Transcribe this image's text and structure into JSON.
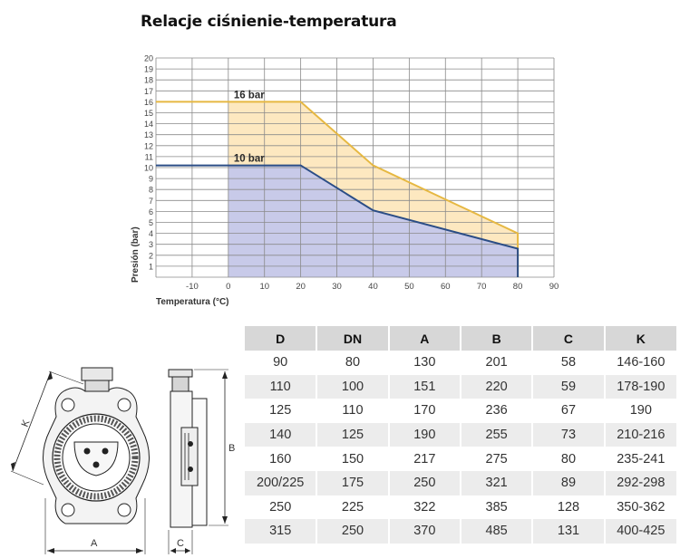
{
  "title": "Relacje ciśnienie-temperatura",
  "chart_data": {
    "type": "area",
    "xlabel": "Temperatura (°C)",
    "ylabel": "Presión (bar)",
    "xlim": [
      -20,
      90
    ],
    "ylim": [
      0,
      20
    ],
    "x_ticks": [
      -10,
      0,
      10,
      20,
      30,
      40,
      50,
      60,
      70,
      80,
      90
    ],
    "y_ticks": [
      1,
      2,
      3,
      4,
      5,
      6,
      7,
      8,
      9,
      10,
      11,
      12,
      13,
      14,
      15,
      16,
      17,
      18,
      19,
      20
    ],
    "grid": true,
    "series": [
      {
        "name": "16 bar",
        "x": [
          -20,
          20,
          40,
          80,
          80
        ],
        "y": [
          16,
          16,
          10.2,
          4,
          0
        ],
        "line_color": "#e6b842",
        "fill_color": "#fde8c0"
      },
      {
        "name": "10 bar",
        "x": [
          -20,
          20,
          40,
          80,
          80
        ],
        "y": [
          10.2,
          10.2,
          6.1,
          2.6,
          0
        ],
        "line_color": "#2b4d86",
        "fill_color": "#c8cae9"
      }
    ]
  },
  "drawing_labels": {
    "a": "A",
    "b": "B",
    "c": "C",
    "k": "K"
  },
  "table": {
    "headers": [
      "D",
      "DN",
      "A",
      "B",
      "C",
      "K"
    ],
    "rows": [
      [
        "90",
        "80",
        "130",
        "201",
        "58",
        "146-160"
      ],
      [
        "110",
        "100",
        "151",
        "220",
        "59",
        "178-190"
      ],
      [
        "125",
        "110",
        "170",
        "236",
        "67",
        "190"
      ],
      [
        "140",
        "125",
        "190",
        "255",
        "73",
        "210-216"
      ],
      [
        "160",
        "150",
        "217",
        "275",
        "80",
        "235-241"
      ],
      [
        "200/225",
        "175",
        "250",
        "321",
        "89",
        "292-298"
      ],
      [
        "250",
        "225",
        "322",
        "385",
        "128",
        "350-362"
      ],
      [
        "315",
        "250",
        "370",
        "485",
        "131",
        "400-425"
      ]
    ]
  }
}
